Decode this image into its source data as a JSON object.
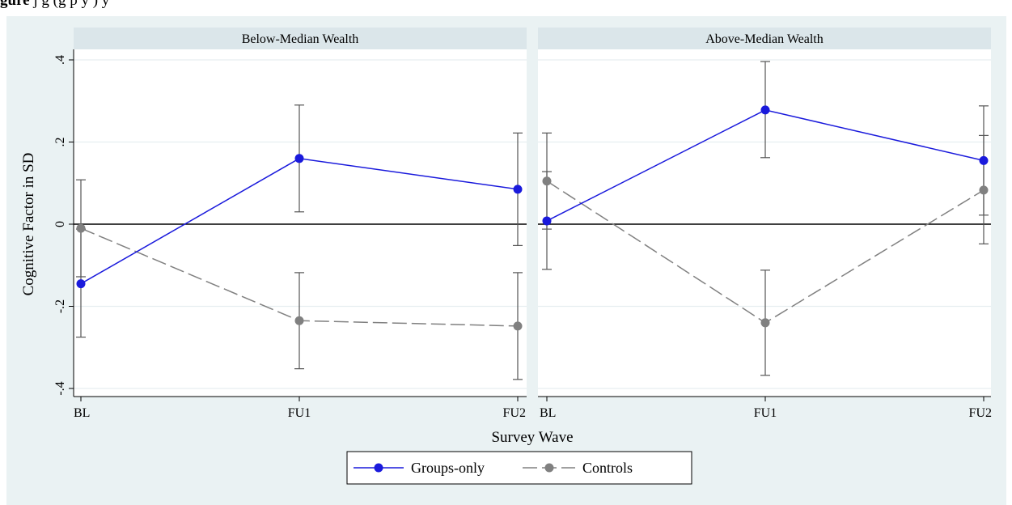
{
  "caption": {
    "prefix": "gure",
    "text": "  j                               g       (g         p      y                    )  y"
  },
  "chart_data": {
    "type": "line",
    "ylabel": "Cognitive Factor in SD",
    "xlabel": "Survey Wave",
    "categories": [
      "BL",
      "FU1",
      "FU2"
    ],
    "ylim": [
      -0.4,
      0.4
    ],
    "yticks": [
      {
        "value": -0.4,
        "label": "-.4"
      },
      {
        "value": -0.2,
        "label": "-.2"
      },
      {
        "value": 0,
        "label": "0"
      },
      {
        "value": 0.2,
        "label": ".2"
      },
      {
        "value": 0.4,
        "label": ".4"
      }
    ],
    "grid": true,
    "legend_position": "bottom",
    "colors": {
      "groups": "#1a1adc",
      "controls": "#808080",
      "strip": "#dbe6ea",
      "figure_bg": "#eaf2f3"
    },
    "panels": [
      {
        "title": "Below-Median Wealth",
        "series": [
          {
            "name": "Groups-only",
            "values": [
              -0.145,
              0.16,
              0.085
            ],
            "ci_low": [
              -0.275,
              0.03,
              -0.052
            ],
            "ci_high": [
              -0.012,
              0.29,
              0.222
            ]
          },
          {
            "name": "Controls",
            "values": [
              -0.01,
              -0.235,
              -0.248
            ],
            "ci_low": [
              -0.128,
              -0.352,
              -0.378
            ],
            "ci_high": [
              0.108,
              -0.118,
              -0.118
            ]
          }
        ]
      },
      {
        "title": "Above-Median Wealth",
        "series": [
          {
            "name": "Groups-only",
            "values": [
              0.008,
              0.278,
              0.155
            ],
            "ci_low": [
              -0.11,
              0.162,
              0.022
            ],
            "ci_high": [
              0.128,
              0.396,
              0.288
            ]
          },
          {
            "name": "Controls",
            "values": [
              0.105,
              -0.24,
              0.083
            ],
            "ci_low": [
              -0.012,
              -0.368,
              -0.048
            ],
            "ci_high": [
              0.222,
              -0.112,
              0.216
            ]
          }
        ]
      }
    ]
  }
}
